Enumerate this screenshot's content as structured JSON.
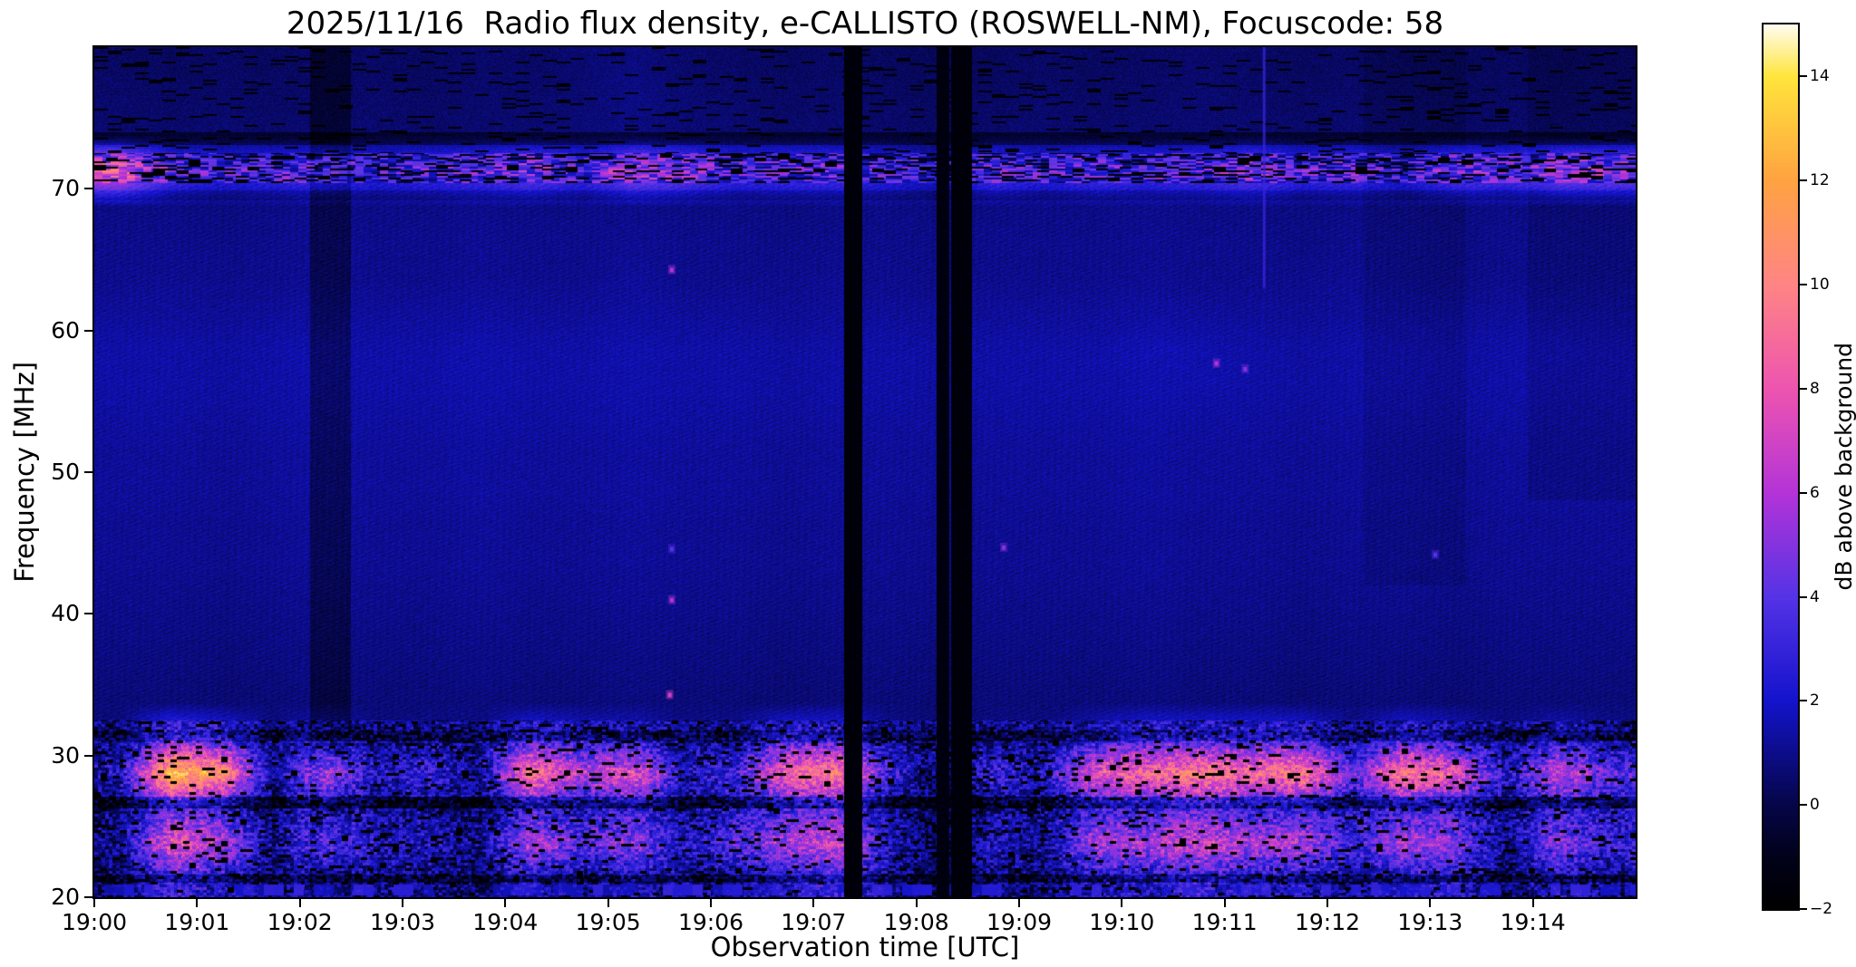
{
  "title": "2025/11/16  Radio flux density, e-CALLISTO (ROSWELL-NM), Focuscode: 58",
  "axes": {
    "x": {
      "label": "Observation time [UTC]",
      "ticks": [
        "19:00",
        "19:01",
        "19:02",
        "19:03",
        "19:04",
        "19:05",
        "19:06",
        "19:07",
        "19:08",
        "19:09",
        "19:10",
        "19:11",
        "19:12",
        "19:13",
        "19:14"
      ],
      "minutes_span": 15
    },
    "y": {
      "label": "Frequency [MHz]",
      "ticks": [
        20,
        30,
        40,
        50,
        60,
        70
      ],
      "range_mhz": [
        20,
        80
      ]
    }
  },
  "colorbar": {
    "label": "dB above background",
    "ticks": [
      "−2",
      "0",
      "2",
      "4",
      "6",
      "8",
      "10",
      "12",
      "14"
    ],
    "vmin": -2,
    "vmax": 15,
    "stops": [
      [
        0,
        "#000000"
      ],
      [
        0.06,
        "#02021c"
      ],
      [
        0.118,
        "#06064a"
      ],
      [
        0.235,
        "#1414cd"
      ],
      [
        0.353,
        "#5633e6"
      ],
      [
        0.47,
        "#b434d8"
      ],
      [
        0.588,
        "#ee55b0"
      ],
      [
        0.706,
        "#ff8585"
      ],
      [
        0.824,
        "#ffa342"
      ],
      [
        0.941,
        "#ffe53c"
      ],
      [
        1,
        "#fffdf0"
      ]
    ]
  },
  "chart_data": {
    "type": "heatmap",
    "title": "2025/11/16  Radio flux density, e-CALLISTO (ROSWELL-NM), Focuscode: 58",
    "xlabel": "Observation time [UTC]",
    "ylabel": "Frequency [MHz]",
    "value_label": "dB above background",
    "time_start_utc": "19:00",
    "time_range_minutes": [
      0,
      15
    ],
    "freq_range": [
      20,
      80
    ],
    "value_range": [
      -2,
      15
    ],
    "x_bin_minutes": 0.5,
    "freq_bin_mhz": 2.5,
    "grid_rows_top_to_bottom_mhz": [
      80,
      20
    ],
    "grid": [
      [
        0.4,
        0.3,
        0.4,
        0.3,
        0.5,
        0.4,
        0.3,
        0.5,
        0.4,
        0.6,
        0.8,
        0.5,
        0.4,
        0.3,
        0.4,
        0.3,
        0.2,
        0.3,
        0.4,
        0.3,
        0.4,
        0.5,
        0.4,
        0.3,
        0.4,
        0.3,
        0.2,
        0.3,
        0.3,
        0.4
      ],
      [
        0.5,
        0.4,
        0.5,
        0.4,
        0.5,
        0.5,
        0.4,
        0.5,
        0.5,
        0.6,
        0.9,
        0.6,
        0.5,
        0.4,
        0.5,
        0.4,
        0.3,
        0.4,
        0.5,
        0.4,
        0.5,
        0.6,
        0.5,
        0.4,
        0.5,
        0.4,
        0.3,
        0.4,
        0.4,
        0.5
      ],
      [
        0.6,
        0.5,
        0.6,
        0.5,
        0.6,
        0.6,
        0.5,
        0.6,
        0.6,
        0.7,
        0.8,
        0.6,
        0.6,
        0.5,
        0.6,
        0.5,
        0.4,
        0.5,
        0.6,
        0.5,
        0.6,
        0.6,
        0.6,
        0.5,
        0.6,
        0.5,
        0.4,
        0.5,
        0.5,
        0.6
      ],
      [
        8,
        4,
        3,
        3.5,
        4,
        3,
        3.5,
        4,
        5,
        3.5,
        6,
        5,
        3.5,
        4,
        4,
        3,
        2,
        4,
        3,
        4,
        3.5,
        4,
        5,
        3.5,
        4,
        3,
        5,
        4,
        6,
        6
      ],
      [
        0.9,
        0.9,
        0.8,
        0.9,
        1,
        0.9,
        0.9,
        1,
        0.9,
        0.9,
        1,
        0.9,
        0.9,
        0.8,
        0.9,
        0.9,
        0.8,
        0.9,
        0.9,
        0.9,
        1,
        0.9,
        0.9,
        0.8,
        0.9,
        0.9,
        0.8,
        0.9,
        0.9,
        0.9
      ],
      [
        1,
        1,
        0.9,
        1,
        1.1,
        1,
        1,
        1.1,
        1,
        1,
        1.1,
        1,
        1,
        0.9,
        1,
        1,
        0.9,
        1,
        1,
        1,
        1.1,
        1,
        1,
        0.9,
        1,
        1,
        0.9,
        1,
        1,
        1
      ],
      [
        1,
        1.1,
        1,
        1,
        1.1,
        1,
        1,
        1.1,
        1,
        1,
        1.2,
        1,
        1,
        1,
        1.1,
        1,
        0.9,
        1,
        1,
        1,
        1.1,
        1,
        1,
        1,
        1.1,
        1,
        0.9,
        1,
        1,
        1
      ],
      [
        1.2,
        1.2,
        1.1,
        1.2,
        1.3,
        1.2,
        1.2,
        1.3,
        1.2,
        1.2,
        1.3,
        1.2,
        1.2,
        1.1,
        1.2,
        1.2,
        1.1,
        1.2,
        1.2,
        1.2,
        1.3,
        1.2,
        1.2,
        1.1,
        1.2,
        1.2,
        1.1,
        1.2,
        1.2,
        1.2
      ],
      [
        1.4,
        1.4,
        1.3,
        1.4,
        1.5,
        1.4,
        1.4,
        1.5,
        1.4,
        1.4,
        1.5,
        1.4,
        1.4,
        1.3,
        1.4,
        1.4,
        1.3,
        1.4,
        1.4,
        1.4,
        1.6,
        1.5,
        1.4,
        1.3,
        1.4,
        1.4,
        1.3,
        1.4,
        1.5,
        1.4
      ],
      [
        1.4,
        1.4,
        1.3,
        1.4,
        1.5,
        1.4,
        1.4,
        1.5,
        1.4,
        1.4,
        1.5,
        1.4,
        1.4,
        1.3,
        1.4,
        1.4,
        1.3,
        1.4,
        1.4,
        1.4,
        1.5,
        1.5,
        1.4,
        1.3,
        1.4,
        1.4,
        1.3,
        1.4,
        1.4,
        1.4
      ],
      [
        1.3,
        1.3,
        1.2,
        1.3,
        1.4,
        1.3,
        1.3,
        1.4,
        1.3,
        1.3,
        1.4,
        1.3,
        1.3,
        1.2,
        1.3,
        1.3,
        1.2,
        1.3,
        1.3,
        1.3,
        1.4,
        1.3,
        1.3,
        1.2,
        1.3,
        1.3,
        1.2,
        1.3,
        1.3,
        1.3
      ],
      [
        1.2,
        1.2,
        1.1,
        1.2,
        1.3,
        1.2,
        1.2,
        1.3,
        1.2,
        1.2,
        1.3,
        1.2,
        1.2,
        1.1,
        1.2,
        1.2,
        1.1,
        1.2,
        1.2,
        1.2,
        1.3,
        1.2,
        1.2,
        1.1,
        1.2,
        1.2,
        1.1,
        1.2,
        1.2,
        1.2
      ],
      [
        1.2,
        1.2,
        1.1,
        1.2,
        1.3,
        1.2,
        1.2,
        1.3,
        1.2,
        1.2,
        1.3,
        1.2,
        1.2,
        1.1,
        1.2,
        1.2,
        1.1,
        1.2,
        1.2,
        1.2,
        1.3,
        1.2,
        1.2,
        1.1,
        1.2,
        1.2,
        1.1,
        1.2,
        1.2,
        1.2
      ],
      [
        1.1,
        1.1,
        1,
        1.1,
        1.2,
        1.1,
        1.1,
        1.2,
        1.1,
        1.1,
        1.2,
        1.1,
        1.1,
        1,
        1.1,
        1.1,
        1,
        1.1,
        1.1,
        1.1,
        1.2,
        1.1,
        1.1,
        1,
        1.1,
        1.1,
        1,
        1.1,
        1.1,
        1.1
      ],
      [
        1.1,
        1.1,
        1,
        1.1,
        1.2,
        1.1,
        1.1,
        1.2,
        1.1,
        1.1,
        1.2,
        1.1,
        1.1,
        1,
        1.1,
        1.1,
        1,
        1.1,
        1.1,
        1.1,
        1.2,
        1.1,
        1.1,
        1,
        1.1,
        1.1,
        1,
        1.1,
        1.1,
        1.1
      ],
      [
        1,
        1,
        0.9,
        1,
        1.1,
        1,
        1,
        1.1,
        1,
        1,
        1.1,
        1,
        1,
        0.9,
        1,
        1,
        0.9,
        1,
        1,
        1,
        1.1,
        1,
        1,
        0.9,
        1,
        1,
        0.9,
        1,
        1,
        1
      ],
      [
        0.9,
        0.9,
        0.8,
        0.9,
        1,
        0.9,
        0.9,
        1,
        0.9,
        0.9,
        1,
        0.9,
        0.9,
        0.8,
        0.9,
        0.9,
        0.8,
        0.9,
        0.9,
        0.9,
        1,
        0.9,
        0.9,
        0.8,
        0.9,
        0.9,
        0.8,
        0.9,
        0.9,
        0.9
      ],
      [
        0.8,
        0.8,
        0.7,
        0.8,
        0.9,
        0.8,
        0.8,
        0.9,
        0.8,
        0.8,
        0.9,
        0.8,
        0.8,
        0.7,
        0.8,
        0.8,
        0.7,
        0.8,
        0.8,
        0.8,
        0.9,
        0.8,
        0.8,
        0.7,
        0.8,
        0.8,
        0.7,
        0.8,
        0.8,
        0.8
      ],
      [
        0.7,
        0.7,
        0.6,
        0.7,
        0.8,
        0.7,
        0.7,
        0.8,
        0.7,
        0.7,
        0.8,
        0.7,
        0.7,
        0.6,
        0.7,
        0.7,
        0.6,
        0.7,
        0.7,
        0.7,
        0.8,
        0.7,
        0.7,
        0.6,
        0.7,
        0.7,
        0.6,
        0.7,
        0.7,
        0.7
      ],
      [
        0.8,
        4,
        3,
        0.8,
        2,
        0.8,
        1,
        0.8,
        3,
        2,
        2,
        1,
        1,
        3,
        3,
        1,
        0.5,
        1,
        0.8,
        2,
        3,
        3,
        3,
        3,
        1,
        3,
        2,
        0.8,
        2,
        1
      ],
      [
        2,
        13,
        11,
        1,
        7,
        2,
        3,
        1,
        10,
        6,
        8,
        2,
        3,
        9,
        10,
        3,
        0,
        3,
        2,
        8,
        9,
        10,
        9,
        10,
        4,
        10,
        8,
        2,
        7,
        4
      ],
      [
        0.5,
        4,
        3,
        0.5,
        3,
        1,
        1,
        0.5,
        3,
        2,
        3,
        1,
        2,
        3,
        4,
        1,
        0,
        1,
        1,
        3,
        3,
        4,
        3,
        3,
        2,
        3,
        3,
        1,
        3,
        2
      ],
      [
        1,
        8,
        6,
        1,
        5,
        2,
        2,
        1,
        6,
        4,
        5,
        2,
        4,
        6,
        7,
        2,
        0,
        2,
        1,
        6,
        6,
        7,
        6,
        6,
        3,
        6,
        5,
        1,
        5,
        3
      ],
      [
        0.5,
        3,
        2,
        0.5,
        2,
        1,
        1,
        0.5,
        2,
        1,
        2,
        1,
        1,
        2,
        3,
        1,
        0,
        1,
        0.5,
        2,
        2,
        3,
        2,
        2,
        1,
        2,
        2,
        0.5,
        2,
        1
      ]
    ],
    "gaps": [
      {
        "t0": 7.3,
        "t1": 7.47,
        "level": -1.6
      },
      {
        "t0": 8.2,
        "t1": 8.32,
        "level": -1.4
      },
      {
        "t0": 8.34,
        "t1": 8.54,
        "level": -1.6
      }
    ],
    "shade_stripes": [
      {
        "t0": 2.1,
        "t1": 2.5,
        "f0": 20,
        "f1": 80,
        "delta": -1.0
      },
      {
        "t0": 12.35,
        "t1": 13.35,
        "f0": 42,
        "f1": 80,
        "delta": -0.25
      },
      {
        "t0": 13.95,
        "t1": 15,
        "f0": 48,
        "f1": 80,
        "delta": -0.3
      }
    ],
    "dark_lanes": [
      {
        "f0": 73.1,
        "f1": 74,
        "delta": -1.1
      },
      {
        "f0": 69.2,
        "f1": 69.9,
        "delta": -0.6
      },
      {
        "f0": 26.3,
        "f1": 27.1,
        "delta": -2.2
      },
      {
        "f0": 31,
        "f1": 31.8,
        "delta": -1.2
      },
      {
        "f0": 21,
        "f1": 21.6,
        "delta": -1.5
      }
    ],
    "point_events": [
      {
        "t": 5.62,
        "f": 64.3,
        "v": 6
      },
      {
        "t": 5.62,
        "f": 44.6,
        "v": 4
      },
      {
        "t": 5.62,
        "f": 41,
        "v": 6
      },
      {
        "t": 5.6,
        "f": 34.3,
        "v": 7
      },
      {
        "t": 8.85,
        "f": 44.7,
        "v": 5
      },
      {
        "t": 10.92,
        "f": 57.7,
        "v": 6
      },
      {
        "t": 11.2,
        "f": 57.3,
        "v": 5
      },
      {
        "t": 13.05,
        "f": 44.2,
        "v": 4
      }
    ],
    "vline_events": [
      {
        "t": 11.38,
        "f0": 63,
        "f1": 80,
        "v": 3.2
      }
    ],
    "features": [
      "Strong intermittent burst activity 20-32 MHz, brightest near 19:00.8 (about 13 dB)",
      "Persistent RFI band 70.5-72.5 MHz with pink blobs and black dropouts",
      "Black data-gap columns near 19:07.4 and 19:08.2-19:08.5",
      "Darker vertical stripe near 19:02.2",
      "Faint diagonal interference weave over 35-65 MHz background",
      "Isolated bright points near 19:05.6 at 64, 45, 41 and 34 MHz",
      "Thin bright vertical line near 19:11.4 above 63 MHz"
    ]
  }
}
